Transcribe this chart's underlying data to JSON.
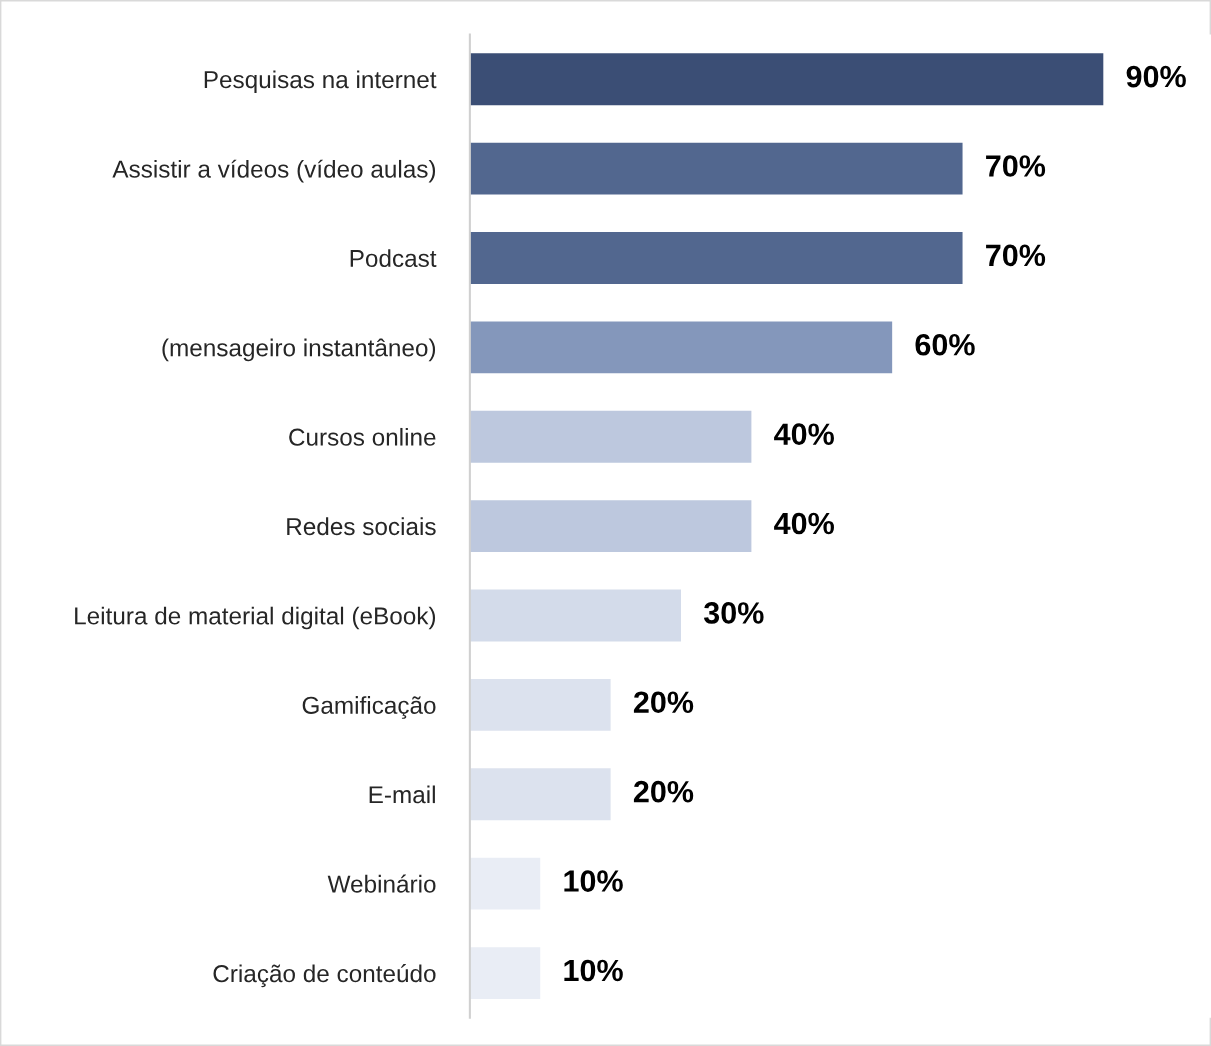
{
  "chart_data": {
    "type": "bar",
    "orientation": "horizontal",
    "categories": [
      "Pesquisas na internet",
      "Assistir a vídeos (vídeo aulas)",
      "Podcast",
      "(mensageiro instantâneo)",
      "Cursos online",
      "Redes sociais",
      "Leitura de material digital (eBook)",
      "Gamificação",
      "E-mail",
      "Webinário",
      "Criação de conteúdo"
    ],
    "values": [
      90,
      70,
      70,
      60,
      40,
      40,
      30,
      20,
      20,
      10,
      10
    ],
    "value_labels": [
      "90%",
      "70%",
      "70%",
      "60%",
      "40%",
      "40%",
      "30%",
      "20%",
      "20%",
      "10%",
      "10%"
    ],
    "colors": [
      "#3b4e75",
      "#52678f",
      "#52678f",
      "#8497bb",
      "#bdc8de",
      "#bdc8de",
      "#d3dbea",
      "#dce2ee",
      "#dce2ee",
      "#e9edf5",
      "#e9edf5"
    ],
    "grid": false,
    "legend": false
  }
}
